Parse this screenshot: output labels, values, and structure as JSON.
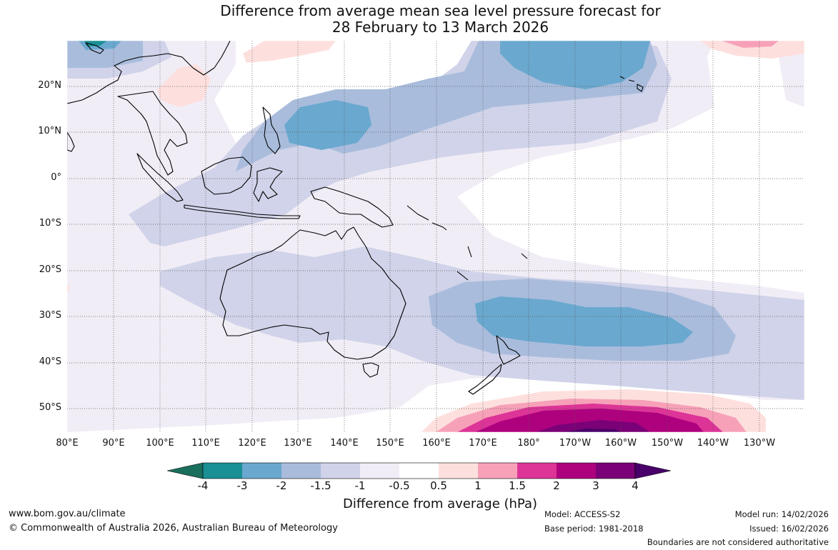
{
  "title": {
    "line1": "Difference from average mean sea level pressure forecast for",
    "line2": "28 February to 13 March 2026"
  },
  "axes": {
    "lat_labels": [
      "20°N",
      "10°N",
      "0°",
      "10°S",
      "20°S",
      "30°S",
      "40°S",
      "50°S"
    ],
    "lon_labels": [
      "80°E",
      "90°E",
      "100°E",
      "110°E",
      "120°E",
      "130°E",
      "140°E",
      "150°E",
      "160°E",
      "170°E",
      "180°",
      "170°W",
      "160°W",
      "150°W",
      "140°W",
      "130°W"
    ]
  },
  "colorbar": {
    "ticks": [
      "-4",
      "-3",
      "-2",
      "-1.5",
      "-1",
      "-0.5",
      "0.5",
      "1",
      "1.5",
      "2",
      "3",
      "4"
    ],
    "colors": [
      "#1a6e5c",
      "#1a8f94",
      "#6aa8cf",
      "#a9bcdc",
      "#d0d3e9",
      "#f1edf6",
      "#ffffff",
      "#fde0de",
      "#f7a1b9",
      "#dd3497",
      "#ae017e",
      "#7a0177",
      "#49006a"
    ],
    "title": "Difference from average (hPa)"
  },
  "footer": {
    "website": "www.bom.gov.au/climate",
    "copyright": "© Commonwealth of Australia 2026, Australian Bureau of Meteorology",
    "model": "Model: ACCESS-S2",
    "base_period": "Base period: 1981-2018",
    "model_run": "Model run: 14/02/2026",
    "issued": "Issued: 16/02/2026",
    "disclaimer": "Boundaries are not considered authoritative"
  }
}
